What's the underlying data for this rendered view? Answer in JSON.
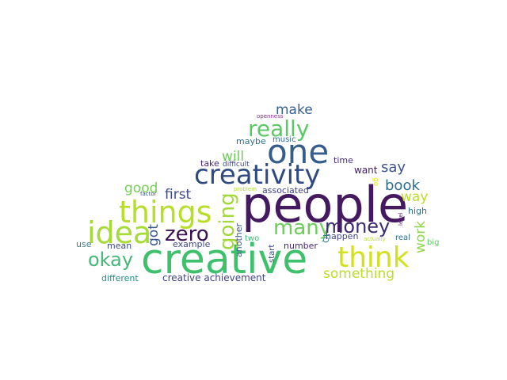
{
  "words": [
    {
      "text": "people",
      "color": "#44195f"
    },
    {
      "text": "creative",
      "color": "#3fc06d"
    },
    {
      "text": "one",
      "color": "#355e8d"
    },
    {
      "text": "creativity",
      "color": "#2e4a7e"
    },
    {
      "text": "things",
      "color": "#b7de2a"
    },
    {
      "text": "idea",
      "color": "#a5db36"
    },
    {
      "text": "think",
      "color": "#d1e11c"
    },
    {
      "text": "really",
      "color": "#5ac864"
    },
    {
      "text": "zero",
      "color": "#3b0f52"
    },
    {
      "text": "going",
      "color": "#a2d83a"
    },
    {
      "text": "many",
      "color": "#6ccd5a"
    },
    {
      "text": "money",
      "color": "#3b2a6e"
    },
    {
      "text": "okay",
      "color": "#45b87a"
    },
    {
      "text": "something",
      "color": "#b8de2a"
    },
    {
      "text": "book",
      "color": "#2f6f8e"
    },
    {
      "text": "say",
      "color": "#3b528b"
    },
    {
      "text": "make",
      "color": "#365d8d"
    },
    {
      "text": "will",
      "color": "#6dcd59"
    },
    {
      "text": "first",
      "color": "#3e4989"
    },
    {
      "text": "good",
      "color": "#75d054"
    },
    {
      "text": "way",
      "color": "#b9de28"
    },
    {
      "text": "work",
      "color": "#8ed645"
    },
    {
      "text": "got",
      "color": "#38588c"
    },
    {
      "text": "creative achievement",
      "color": "#414487"
    },
    {
      "text": "maybe",
      "color": "#2c728e"
    },
    {
      "text": "music",
      "color": "#31688e"
    },
    {
      "text": "want",
      "color": "#3f1b62"
    },
    {
      "text": "time",
      "color": "#472d7b"
    },
    {
      "text": "take",
      "color": "#482878"
    },
    {
      "text": "difficult",
      "color": "#3e4a89"
    },
    {
      "text": "openness",
      "color": "#8a2a8e"
    },
    {
      "text": "associated",
      "color": "#404387"
    },
    {
      "text": "another",
      "color": "#39568c"
    },
    {
      "text": "mean",
      "color": "#3e4a89"
    },
    {
      "text": "example",
      "color": "#3f4788"
    },
    {
      "text": "use",
      "color": "#3b7c8a"
    },
    {
      "text": "number",
      "color": "#482475"
    },
    {
      "text": "happen",
      "color": "#414487"
    },
    {
      "text": "real",
      "color": "#2f6c8e"
    },
    {
      "text": "two",
      "color": "#3aba76"
    },
    {
      "text": "start",
      "color": "#3f4788"
    },
    {
      "text": "IQ",
      "color": "#2a788e"
    },
    {
      "text": "go",
      "color": "#e1e321"
    },
    {
      "text": "high",
      "color": "#2d708e"
    },
    {
      "text": "level",
      "color": "#6a1f88"
    },
    {
      "text": "big",
      "color": "#5cc863"
    },
    {
      "text": "actually",
      "color": "#b5de2b"
    },
    {
      "text": "problem",
      "color": "#b0dd2f"
    },
    {
      "text": "factor",
      "color": "#3c4f8a"
    },
    {
      "text": "different",
      "color": "#21908d"
    }
  ]
}
